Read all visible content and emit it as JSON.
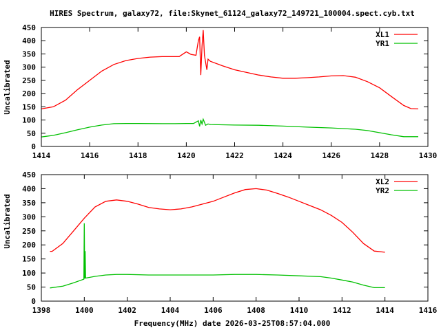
{
  "title": "HIRES Spectrum, galaxy72, file:Skynet_61124_galaxy72_149721_100004.spect.cyb.txt",
  "xlabel": "Frequency(MHz) date 2026-03-25T08:57:04.000",
  "colors": {
    "xl": "#ff0000",
    "yr": "#00c000"
  },
  "chart_data": [
    {
      "type": "line",
      "ylabel": "Uncalibrated",
      "xlim": [
        1414,
        1430
      ],
      "ylim": [
        0,
        450
      ],
      "xticks": [
        1414,
        1416,
        1418,
        1420,
        1422,
        1424,
        1426,
        1428,
        1430
      ],
      "yticks": [
        0,
        50,
        100,
        150,
        200,
        250,
        300,
        350,
        400,
        450
      ],
      "legend_position": "top-right",
      "series": [
        {
          "name": "XL1",
          "color": "#ff0000",
          "x": [
            1414,
            1414.5,
            1415,
            1415.5,
            1416,
            1416.5,
            1417,
            1417.5,
            1418,
            1418.5,
            1419,
            1419.5,
            1419.7,
            1420,
            1420.2,
            1420.4,
            1420.5,
            1420.55,
            1420.6,
            1420.65,
            1420.7,
            1420.75,
            1420.85,
            1420.9,
            1421,
            1421.5,
            1422,
            1422.5,
            1423,
            1423.5,
            1424,
            1424.5,
            1425,
            1425.5,
            1426,
            1426.5,
            1427,
            1427.5,
            1428,
            1428.5,
            1429,
            1429.3,
            1429.6
          ],
          "y": [
            142,
            150,
            175,
            215,
            250,
            285,
            310,
            325,
            333,
            338,
            340,
            340,
            340,
            358,
            348,
            345,
            400,
            415,
            270,
            380,
            440,
            345,
            290,
            330,
            322,
            305,
            290,
            280,
            270,
            263,
            258,
            258,
            260,
            263,
            267,
            268,
            262,
            245,
            222,
            188,
            155,
            143,
            142
          ]
        },
        {
          "name": "YR1",
          "color": "#00c000",
          "x": [
            1414,
            1414.5,
            1415,
            1415.5,
            1416,
            1416.5,
            1417,
            1417.5,
            1418,
            1419,
            1419.5,
            1420,
            1420.3,
            1420.5,
            1420.55,
            1420.6,
            1420.65,
            1420.7,
            1420.8,
            1420.9,
            1421,
            1422,
            1423,
            1424,
            1425,
            1426,
            1427,
            1427.5,
            1428,
            1428.5,
            1429,
            1429.6
          ],
          "y": [
            36,
            42,
            52,
            63,
            73,
            81,
            86,
            87,
            87,
            86,
            86,
            87,
            87,
            97,
            76,
            100,
            85,
            103,
            80,
            85,
            83,
            81,
            80,
            77,
            73,
            70,
            65,
            60,
            52,
            44,
            37,
            37
          ]
        }
      ]
    },
    {
      "type": "line",
      "ylabel": "Uncalibrated",
      "xlim": [
        1398,
        1416
      ],
      "ylim": [
        0,
        450
      ],
      "xticks": [
        1398,
        1400,
        1402,
        1404,
        1406,
        1408,
        1410,
        1412,
        1414,
        1416
      ],
      "yticks": [
        0,
        50,
        100,
        150,
        200,
        250,
        300,
        350,
        400,
        450
      ],
      "legend_position": "top-right",
      "series": [
        {
          "name": "XL2",
          "color": "#ff0000",
          "x": [
            1398.4,
            1398.5,
            1399,
            1399.5,
            1400,
            1400.5,
            1401,
            1401.5,
            1402,
            1402.5,
            1403,
            1403.5,
            1404,
            1404.5,
            1405,
            1405.5,
            1406,
            1406.5,
            1407,
            1407.5,
            1408,
            1408.5,
            1409,
            1409.5,
            1410,
            1410.5,
            1411,
            1411.5,
            1412,
            1412.5,
            1413,
            1413.5,
            1414
          ],
          "y": [
            177,
            177,
            205,
            250,
            295,
            335,
            355,
            360,
            355,
            345,
            333,
            328,
            325,
            328,
            335,
            345,
            355,
            370,
            385,
            397,
            400,
            395,
            383,
            370,
            355,
            340,
            325,
            305,
            280,
            245,
            205,
            178,
            174
          ]
        },
        {
          "name": "YR2",
          "color": "#00c000",
          "x": [
            1398.4,
            1399,
            1399.5,
            1399.98,
            1400,
            1400.02,
            1400.04,
            1400.06,
            1400.5,
            1401,
            1401.5,
            1402,
            1403,
            1404,
            1405,
            1406,
            1407,
            1408,
            1409,
            1410,
            1411,
            1411.5,
            1412,
            1412.5,
            1413,
            1413.5,
            1414
          ],
          "y": [
            47,
            53,
            65,
            78,
            277,
            80,
            178,
            82,
            88,
            93,
            95,
            95,
            93,
            93,
            93,
            93,
            95,
            95,
            93,
            90,
            87,
            82,
            75,
            68,
            57,
            48,
            48
          ]
        }
      ]
    }
  ]
}
